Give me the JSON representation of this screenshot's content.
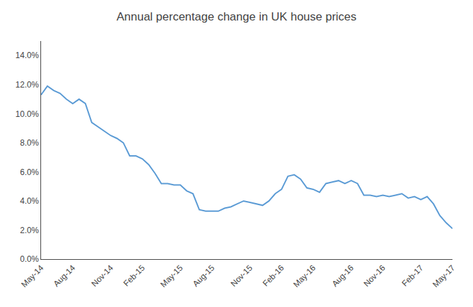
{
  "chart_data": {
    "type": "line",
    "title": "Annual percentage change in UK house prices",
    "categories": [
      "May-14",
      null,
      null,
      null,
      null,
      "Aug-14",
      null,
      null,
      null,
      null,
      null,
      "Nov-14",
      null,
      null,
      null,
      null,
      "Feb-15",
      null,
      null,
      null,
      null,
      null,
      "May-15",
      null,
      null,
      null,
      null,
      "Aug-15",
      null,
      null,
      null,
      null,
      null,
      "Nov-15",
      null,
      null,
      null,
      null,
      "Feb-16",
      null,
      null,
      null,
      null,
      "May-16",
      null,
      null,
      null,
      null,
      null,
      "Aug-16",
      null,
      null,
      null,
      null,
      "Nov-16",
      null,
      null,
      null,
      null,
      null,
      "Feb-17",
      null,
      null,
      null,
      null,
      "May-17"
    ],
    "values": [
      0.113,
      0.119,
      0.116,
      0.114,
      0.11,
      0.107,
      0.11,
      0.107,
      0.094,
      0.091,
      0.088,
      0.085,
      0.083,
      0.08,
      0.071,
      0.071,
      0.069,
      0.065,
      0.059,
      0.052,
      0.052,
      0.051,
      0.051,
      0.047,
      0.045,
      0.034,
      0.033,
      0.033,
      0.033,
      0.035,
      0.036,
      0.038,
      0.04,
      0.039,
      0.038,
      0.037,
      0.04,
      0.045,
      0.048,
      0.057,
      0.058,
      0.055,
      0.049,
      0.048,
      0.046,
      0.052,
      0.053,
      0.054,
      0.052,
      0.054,
      0.052,
      0.044,
      0.044,
      0.043,
      0.044,
      0.043,
      0.044,
      0.045,
      0.042,
      0.043,
      0.041,
      0.043,
      0.038,
      0.03,
      0.025,
      0.021
    ],
    "color": "#5B9BD5",
    "ylim": [
      0.0,
      0.15
    ],
    "yticks": [
      {
        "value": 0.0,
        "label": "0.0%"
      },
      {
        "value": 0.02,
        "label": "2.0%"
      },
      {
        "value": 0.04,
        "label": "4.0%"
      },
      {
        "value": 0.06,
        "label": "6.0%"
      },
      {
        "value": 0.08,
        "label": "8.0%"
      },
      {
        "value": 0.1,
        "label": "10.0%"
      },
      {
        "value": 0.12,
        "label": "12.0%"
      },
      {
        "value": 0.14,
        "label": "14.0%"
      }
    ],
    "grid": false
  }
}
